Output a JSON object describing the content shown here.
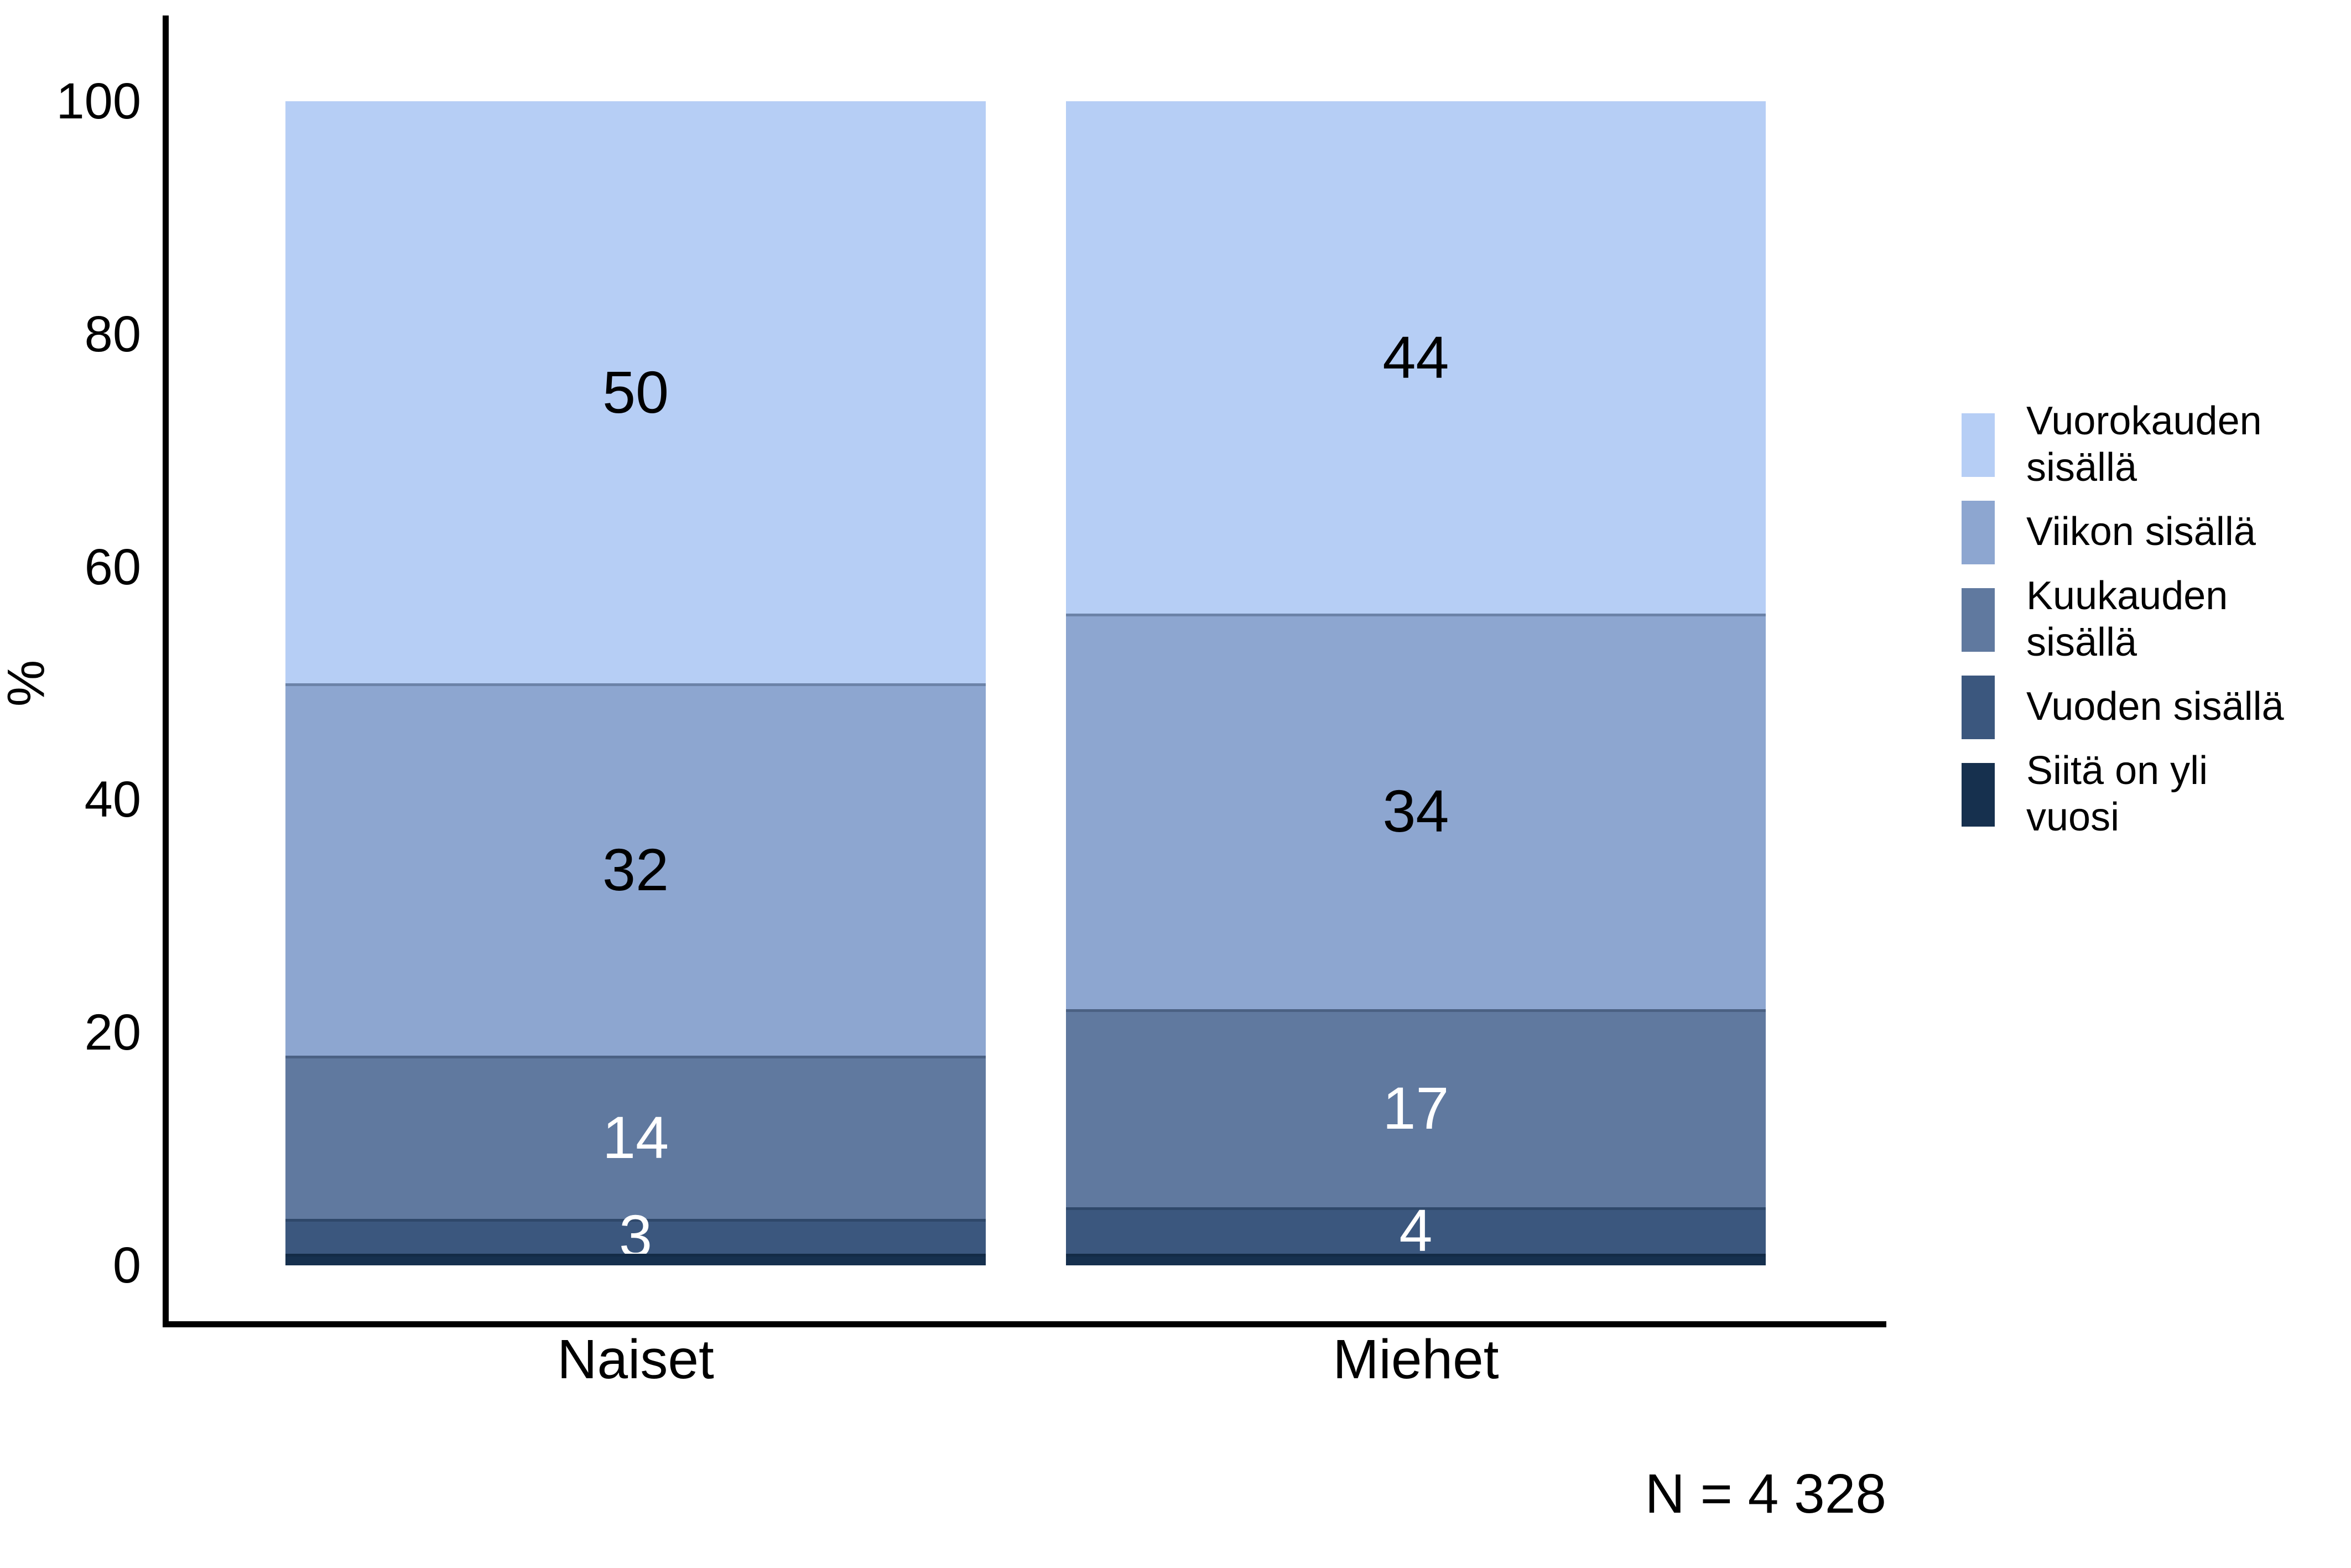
{
  "chart_data": {
    "type": "bar",
    "subtype": "stacked-100-percent",
    "title": "",
    "categories": [
      "Naiset",
      "Miehet"
    ],
    "series": [
      {
        "name": "Vuorokauden sisällä",
        "legend_label": "Vuorokauden\nsisällä",
        "color": "#b6cef5",
        "values": [
          50,
          44
        ],
        "label_color": "#000000",
        "show_value_labels": true
      },
      {
        "name": "Viikon sisällä",
        "legend_label": "Viikon sisällä",
        "color": "#8da6d0",
        "values": [
          32,
          34
        ],
        "label_color": "#000000",
        "show_value_labels": true
      },
      {
        "name": "Kuukauden sisällä",
        "legend_label": "Kuukauden\nsisällä",
        "color": "#60799f",
        "values": [
          14,
          17
        ],
        "label_color": "#ffffff",
        "show_value_labels": true
      },
      {
        "name": "Vuoden sisällä",
        "legend_label": "Vuoden sisällä",
        "color": "#3b577e",
        "values": [
          3,
          4
        ],
        "label_color": "#ffffff",
        "show_value_labels": true
      },
      {
        "name": "Siitä on yli vuosi",
        "legend_label": "Siitä on yli\nvuosi",
        "color": "#16304e",
        "values": [
          1,
          1
        ],
        "label_color": "#ffffff",
        "show_value_labels": false
      }
    ],
    "stack_order": "first listed series is the top segment of each bar",
    "xlabel": "",
    "ylabel": "%",
    "ylim": [
      0,
      100
    ],
    "yticks": [
      0,
      20,
      40,
      60,
      80,
      100
    ],
    "grid": false,
    "legend_position": "right",
    "annotation": "N = 4 328"
  }
}
